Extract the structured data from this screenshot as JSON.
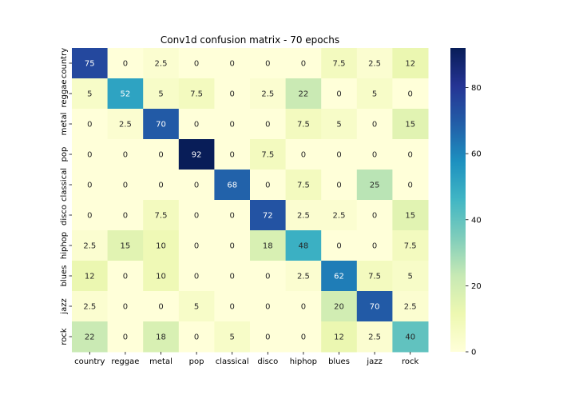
{
  "chart_data": {
    "type": "heatmap",
    "title": "Conv1d confusion matrix - 70 epochs",
    "xlabel": "",
    "ylabel": "",
    "x_categories": [
      "country",
      "reggae",
      "metal",
      "pop",
      "classical",
      "disco",
      "hiphop",
      "blues",
      "jazz",
      "rock"
    ],
    "y_categories": [
      "country",
      "reggae",
      "metal",
      "pop",
      "classical",
      "disco",
      "hiphop",
      "blues",
      "jazz",
      "rock"
    ],
    "values": [
      [
        75,
        0,
        2.5,
        0,
        0,
        0,
        0,
        7.5,
        2.5,
        12
      ],
      [
        5,
        52,
        5,
        7.5,
        0,
        2.5,
        22,
        0,
        5,
        0
      ],
      [
        0,
        2.5,
        70,
        0,
        0,
        0,
        7.5,
        5,
        0,
        15
      ],
      [
        0,
        0,
        0,
        92,
        0,
        7.5,
        0,
        0,
        0,
        0
      ],
      [
        0,
        0,
        0,
        0,
        68,
        0,
        7.5,
        0,
        25,
        0
      ],
      [
        0,
        0,
        7.5,
        0,
        0,
        72,
        2.5,
        2.5,
        0,
        15
      ],
      [
        2.5,
        15,
        10,
        0,
        0,
        18,
        48,
        0,
        0,
        7.5
      ],
      [
        12,
        0,
        10,
        0,
        0,
        0,
        2.5,
        62,
        7.5,
        5
      ],
      [
        2.5,
        0,
        0,
        5,
        0,
        0,
        0,
        20,
        70,
        2.5
      ],
      [
        22,
        0,
        18,
        0,
        5,
        0,
        0,
        12,
        2.5,
        40
      ]
    ],
    "colorbar": {
      "min": 0,
      "max": 92,
      "ticks": [
        0,
        20,
        40,
        60,
        80
      ],
      "colormap": "YlGnBu"
    }
  }
}
